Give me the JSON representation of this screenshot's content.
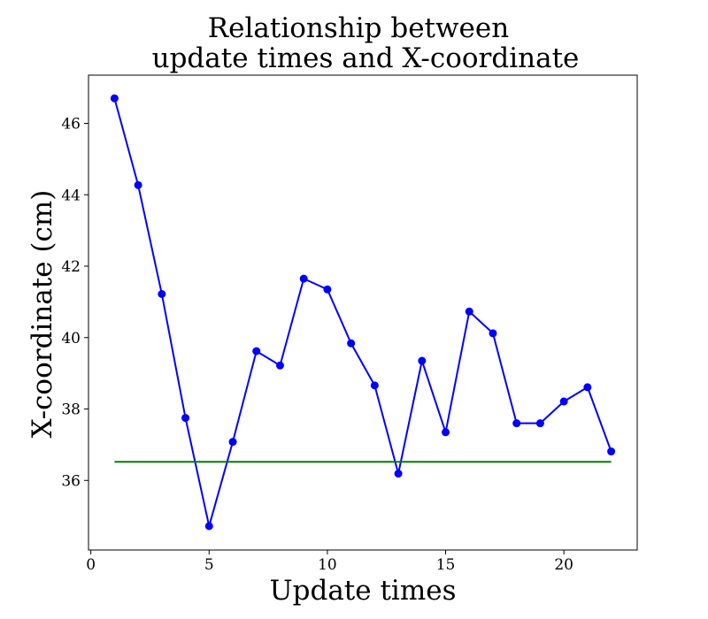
{
  "chart_data": {
    "type": "line",
    "title_lines": [
      "Relationship between",
      "update times and X-coordinate"
    ],
    "xlabel": "Update times",
    "ylabel": "X-coordinate (cm)",
    "xlim": [
      -0.1,
      23.1
    ],
    "ylim": [
      34.05,
      47.35
    ],
    "x_ticks": [
      0,
      5,
      10,
      15,
      20
    ],
    "y_ticks": [
      36,
      38,
      40,
      42,
      44,
      46
    ],
    "grid": false,
    "series": [
      {
        "color": "#0000ff",
        "marker": "circle",
        "x": [
          1,
          2,
          3,
          4,
          5,
          6,
          7,
          8,
          9,
          10,
          11,
          12,
          13,
          14,
          15,
          16,
          17,
          18,
          19,
          20,
          21,
          22
        ],
        "y": [
          46.7,
          44.27,
          41.22,
          37.75,
          34.72,
          37.08,
          39.62,
          39.22,
          41.65,
          41.35,
          39.84,
          38.66,
          36.19,
          39.35,
          37.35,
          40.73,
          40.12,
          37.6,
          37.6,
          38.21,
          38.61,
          36.81
        ]
      },
      {
        "color": "#008000",
        "marker": "none",
        "x": [
          1,
          22
        ],
        "y": [
          36.52,
          36.52
        ]
      }
    ]
  }
}
